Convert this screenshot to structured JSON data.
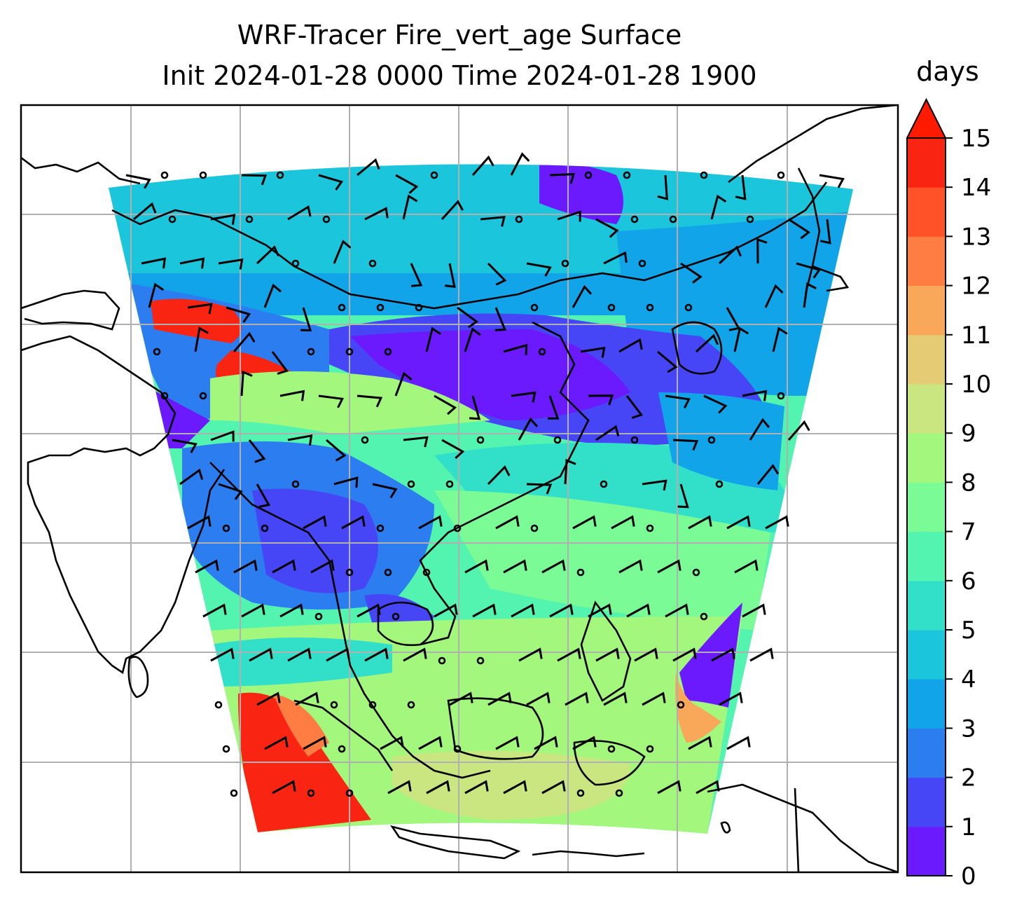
{
  "chart_data": {
    "type": "heatmap",
    "title": "WRF-Tracer Fire_vert_age Surface",
    "subtitle": "Init 2024-01-28 0000 Time 2024-01-28 1900",
    "colorbar": {
      "label": "days",
      "ticks": [
        "0",
        "1",
        "2",
        "3",
        "4",
        "5",
        "6",
        "7",
        "8",
        "9",
        "10",
        "11",
        "12",
        "13",
        "14",
        "15"
      ],
      "extend": "max",
      "levels": [
        0,
        1,
        2,
        3,
        4,
        5,
        6,
        7,
        8,
        9,
        10,
        11,
        12,
        13,
        14,
        15
      ],
      "colors": [
        "#6a1afc",
        "#4746f6",
        "#2c7ef0",
        "#12a4e8",
        "#1bc5dc",
        "#32e0c9",
        "#53f3b0",
        "#7afb95",
        "#a3f77d",
        "#c9e680",
        "#e5cb74",
        "#f9a85a",
        "#ff7c42",
        "#ff5229",
        "#fa2413",
        "#ff1a00"
      ]
    },
    "overlays": [
      "coastlines",
      "lat-lon grid",
      "surface wind barbs"
    ],
    "grid": true
  }
}
